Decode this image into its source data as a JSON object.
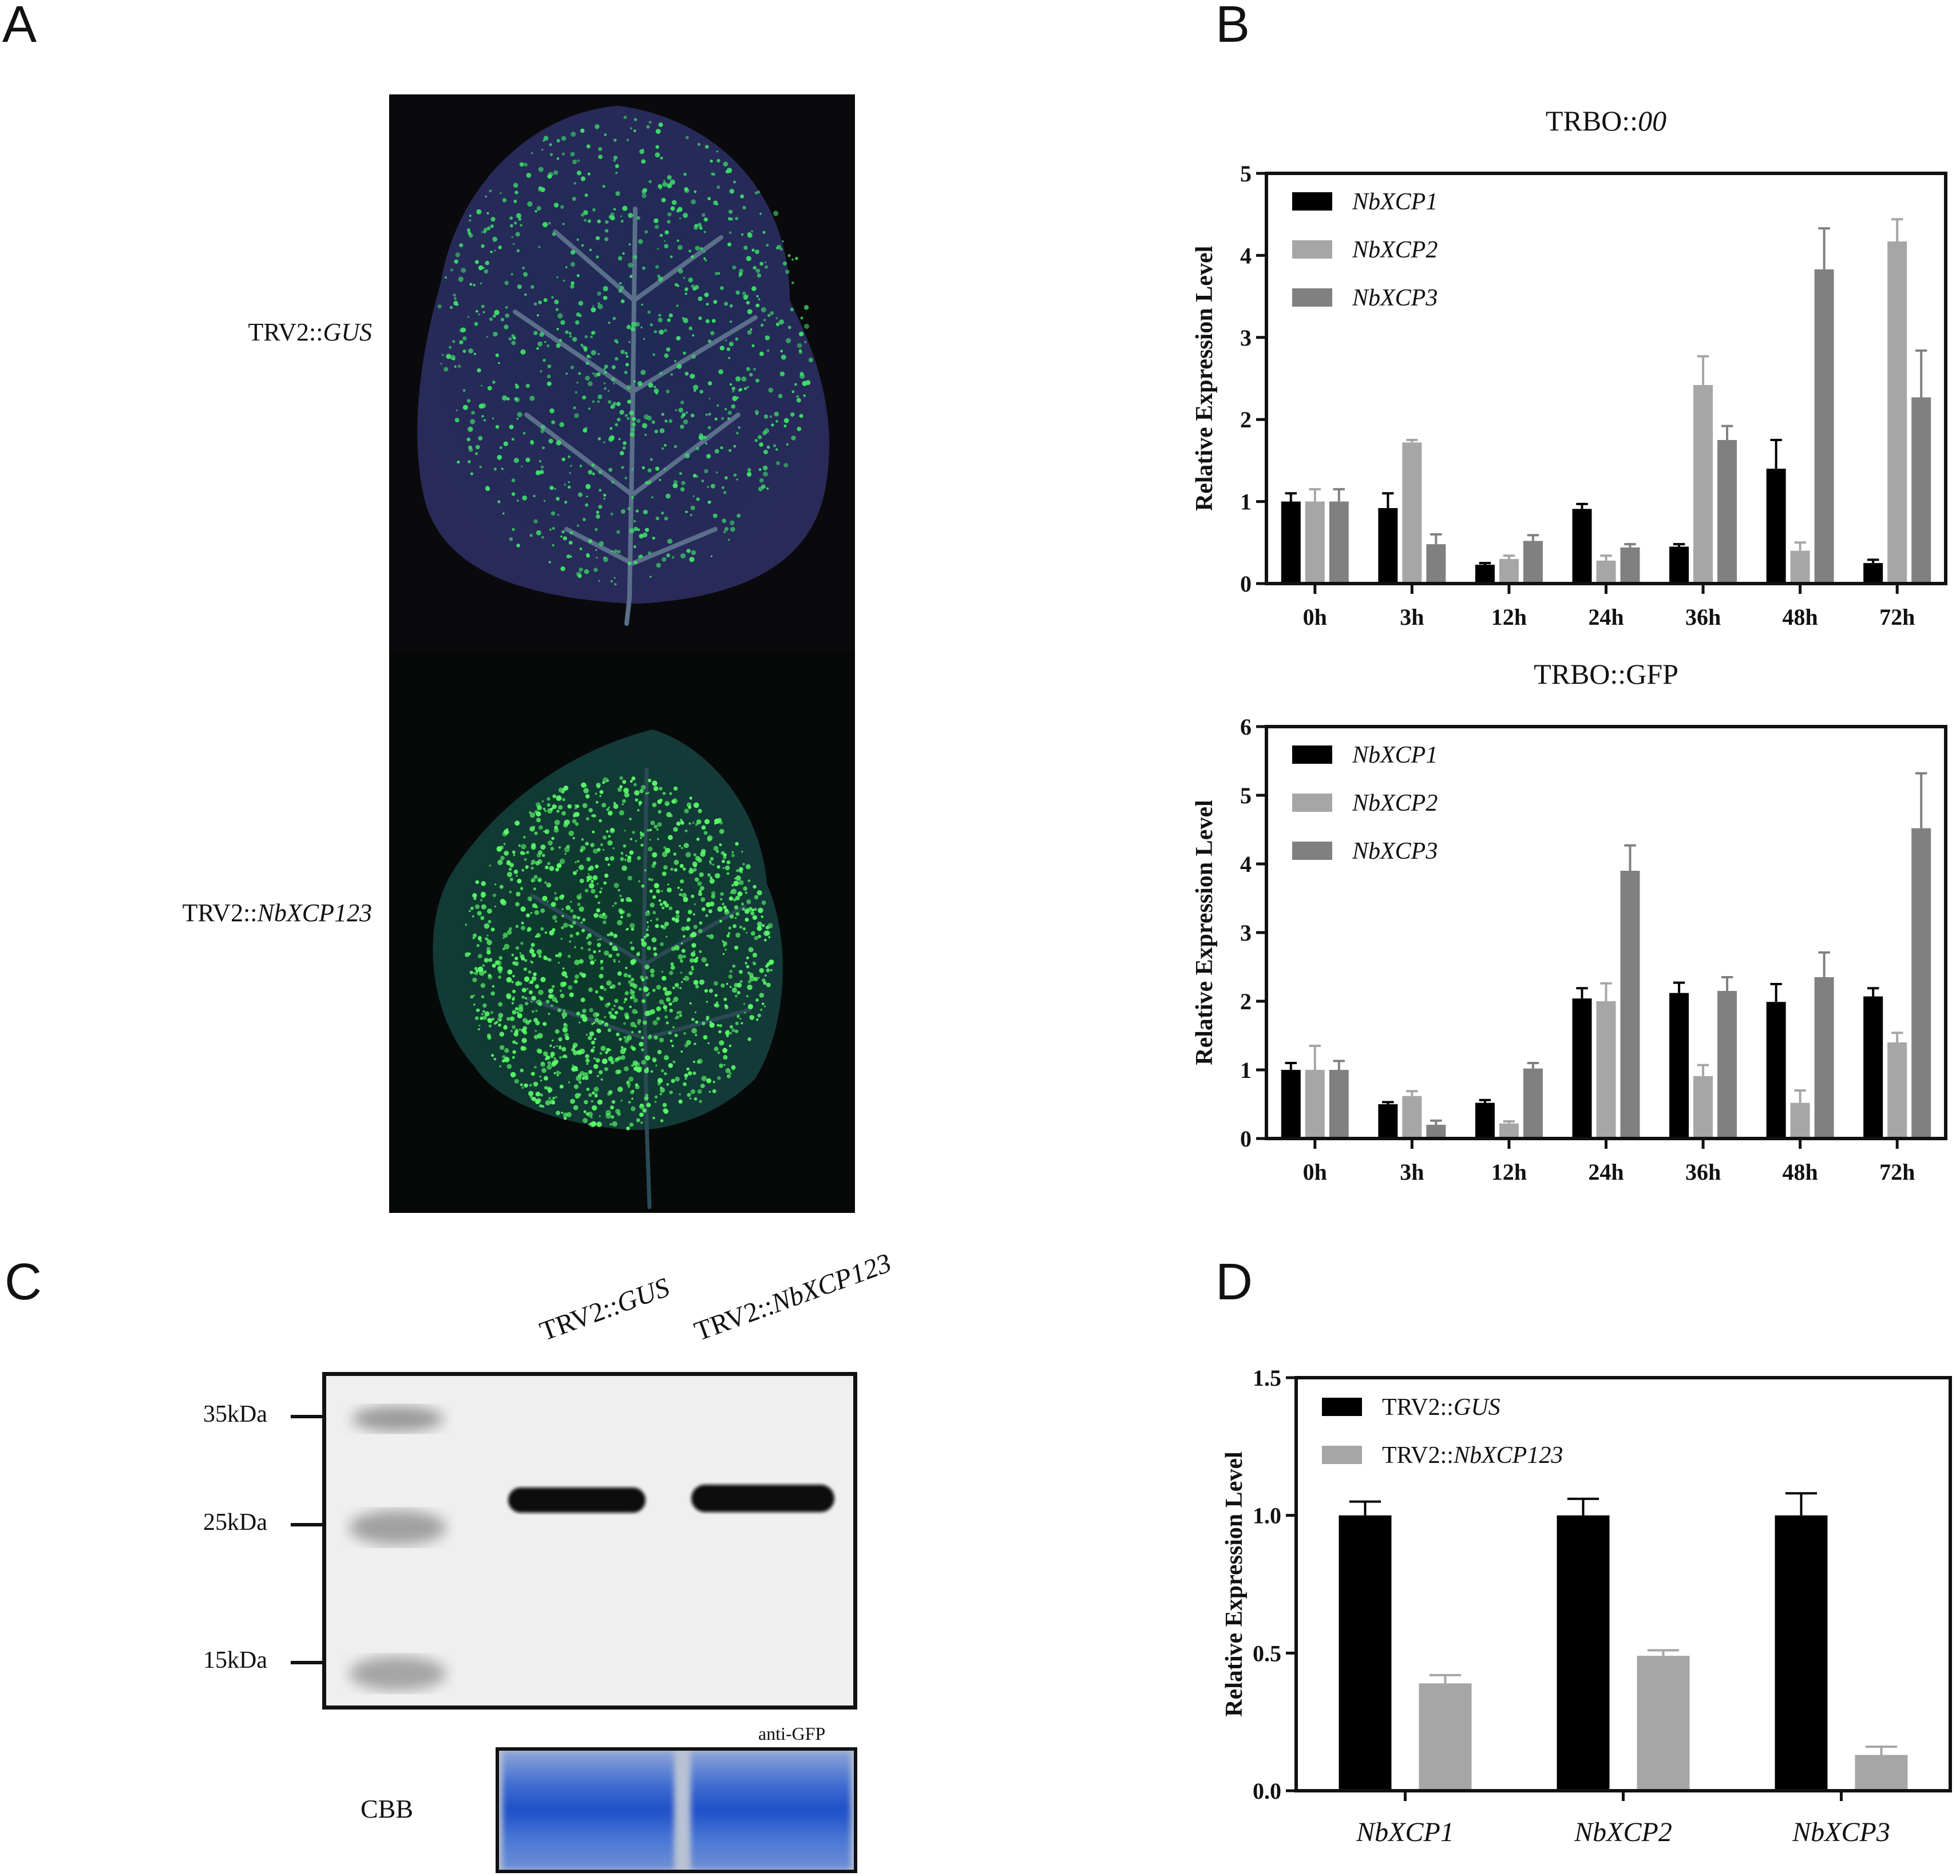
{
  "panels": {
    "a": "A",
    "b": "B",
    "c": "C",
    "d": "D"
  },
  "panel_a": {
    "leaf_top_prefix": "TRV2::",
    "leaf_top_gene": "GUS",
    "leaf_bottom_prefix": "TRV2::",
    "leaf_bottom_gene": "NbXCP123"
  },
  "panel_c": {
    "lane1_prefix": "TRV2::",
    "lane1_gene": "GUS",
    "lane2_prefix": "TRV2::",
    "lane2_gene": "NbXCP123",
    "markers": [
      "35kDa",
      "25kDa",
      "15kDa"
    ],
    "antibody": "anti-GFP",
    "stain": "CBB"
  },
  "colors": {
    "black": "#000000",
    "light_gray": "#a6a6a6",
    "dark_gray": "#808080"
  },
  "chart_data": [
    {
      "type": "bar",
      "title_prefix": "TRBO::",
      "title_italic": "00",
      "ylabel": "Relative Expression Level",
      "ylim": [
        0,
        5
      ],
      "yticks": [
        0,
        1,
        2,
        3,
        4,
        5
      ],
      "categories": [
        "0h",
        "3h",
        "12h",
        "24h",
        "36h",
        "48h",
        "72h"
      ],
      "legend_position": "top-left",
      "series": [
        {
          "name": "NbXCP1",
          "color": "#000000",
          "values": [
            1.0,
            0.92,
            0.23,
            0.91,
            0.45,
            1.4,
            0.25
          ],
          "errors": [
            0.1,
            0.18,
            0.02,
            0.06,
            0.03,
            0.35,
            0.04
          ]
        },
        {
          "name": "NbXCP2",
          "color": "#a6a6a6",
          "values": [
            1.0,
            1.72,
            0.3,
            0.28,
            2.42,
            0.4,
            4.17
          ],
          "errors": [
            0.15,
            0.03,
            0.04,
            0.06,
            0.35,
            0.1,
            0.27
          ]
        },
        {
          "name": "NbXCP3",
          "color": "#808080",
          "values": [
            1.0,
            0.48,
            0.52,
            0.44,
            1.75,
            3.83,
            2.27
          ],
          "errors": [
            0.15,
            0.12,
            0.07,
            0.04,
            0.17,
            0.5,
            0.57
          ]
        }
      ]
    },
    {
      "type": "bar",
      "title": "TRBO::GFP",
      "ylabel": "Relative Expression Level",
      "ylim": [
        0,
        6
      ],
      "yticks": [
        0,
        1,
        2,
        3,
        4,
        5,
        6
      ],
      "categories": [
        "0h",
        "3h",
        "12h",
        "24h",
        "36h",
        "48h",
        "72h"
      ],
      "legend_position": "top-left",
      "series": [
        {
          "name": "NbXCP1",
          "color": "#000000",
          "values": [
            1.0,
            0.5,
            0.52,
            2.04,
            2.12,
            1.99,
            2.07
          ],
          "errors": [
            0.1,
            0.03,
            0.04,
            0.15,
            0.15,
            0.26,
            0.12
          ]
        },
        {
          "name": "NbXCP2",
          "color": "#a6a6a6",
          "values": [
            1.0,
            0.62,
            0.22,
            2.0,
            0.91,
            0.52,
            1.4
          ],
          "errors": [
            0.35,
            0.07,
            0.03,
            0.26,
            0.16,
            0.18,
            0.14
          ]
        },
        {
          "name": "NbXCP3",
          "color": "#808080",
          "values": [
            1.0,
            0.2,
            1.02,
            3.9,
            2.15,
            2.35,
            4.52
          ],
          "errors": [
            0.13,
            0.06,
            0.08,
            0.37,
            0.2,
            0.36,
            0.8
          ]
        }
      ]
    },
    {
      "type": "bar",
      "ylabel": "Relative Expression Level",
      "ylim": [
        0,
        1.5
      ],
      "yticks": [
        "0.0",
        "0.5",
        "1.0",
        "1.5"
      ],
      "categories": [
        "NbXCP1",
        "NbXCP2",
        "NbXCP3"
      ],
      "legend_position": "top-left",
      "series": [
        {
          "name_prefix": "TRV2::",
          "name_italic": "GUS",
          "color": "#000000",
          "values": [
            1.0,
            1.0,
            1.0
          ],
          "errors": [
            0.05,
            0.06,
            0.08
          ]
        },
        {
          "name_prefix": "TRV2::",
          "name_italic": "NbXCP123",
          "color": "#a6a6a6",
          "values": [
            0.39,
            0.49,
            0.13
          ],
          "errors": [
            0.03,
            0.02,
            0.03
          ]
        }
      ]
    }
  ]
}
